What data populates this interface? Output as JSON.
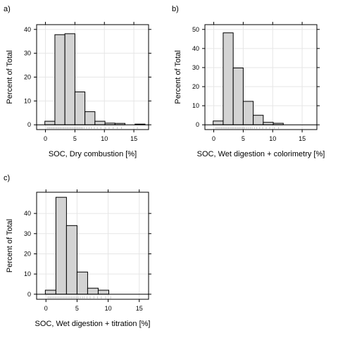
{
  "colors": {
    "bar_fill": "#d3d3d3",
    "bar_stroke": "#000000",
    "grid": "#e6e6e6",
    "rug": "#c8c8c8",
    "frame": "#000000"
  },
  "chart_data": [
    {
      "type": "bar",
      "panel_label": "a)",
      "title": "",
      "xlabel": "SOC, Dry combustion [%]",
      "ylabel": "Percent of Total",
      "grid": true,
      "xlim": [
        -1.5,
        17.5
      ],
      "ylim": [
        -2,
        42
      ],
      "xticks": [
        0,
        5,
        10,
        15
      ],
      "yticks": [
        0,
        10,
        20,
        30,
        40
      ],
      "bin_edges": [
        -0.1,
        1.6,
        3.3,
        5.0,
        6.7,
        8.4,
        10.1,
        11.8,
        13.5,
        15.2,
        16.9
      ],
      "values": [
        1.5,
        37.8,
        38.2,
        13.8,
        5.5,
        1.5,
        0.7,
        0.6,
        0.0,
        0.3
      ],
      "rug": [
        0.3,
        0.5,
        0.7,
        0.9,
        1.1,
        1.3,
        1.5,
        1.7,
        1.9,
        2.1,
        2.3,
        2.5,
        2.7,
        2.9,
        3.1,
        3.3,
        3.5,
        3.7,
        3.9,
        4.1,
        4.3,
        4.5,
        4.7,
        4.9,
        5.1,
        5.3,
        5.5,
        5.7,
        5.9,
        6.1,
        6.3,
        6.6,
        7.0,
        7.4,
        7.8,
        8.3,
        8.8,
        9.4,
        10.2,
        10.8,
        11.5,
        12.2,
        12.9,
        15.6
      ]
    },
    {
      "type": "bar",
      "panel_label": "b)",
      "title": "",
      "xlabel": "SOC,  Wet digestion + colorimetry [%]",
      "ylabel": "Percent of Total",
      "grid": true,
      "xlim": [
        -1.5,
        17.5
      ],
      "ylim": [
        -2.5,
        52.5
      ],
      "xticks": [
        0,
        5,
        10,
        15
      ],
      "yticks": [
        0,
        10,
        20,
        30,
        40,
        50
      ],
      "bin_edges": [
        -0.1,
        1.6,
        3.3,
        5.0,
        6.7,
        8.4,
        10.1,
        11.8
      ],
      "values": [
        2.0,
        48.2,
        29.8,
        12.3,
        5.0,
        1.3,
        0.8
      ],
      "rug": [
        0.3,
        0.5,
        0.7,
        0.9,
        1.1,
        1.3,
        1.5,
        1.7,
        1.9,
        2.1,
        2.3,
        2.5,
        2.7,
        2.9,
        3.1,
        3.3,
        3.5,
        3.7,
        3.9,
        4.1,
        4.3,
        4.5,
        4.7,
        4.9,
        5.1,
        5.3,
        5.6,
        5.9,
        6.2,
        6.5,
        6.9,
        7.3,
        7.8,
        8.3,
        8.9,
        9.5,
        10.3,
        11.0
      ]
    },
    {
      "type": "bar",
      "panel_label": "c)",
      "title": "",
      "xlabel": "SOC, Wet digestion + titration [%]",
      "ylabel": "Percent of Total",
      "grid": true,
      "xlim": [
        -1.5,
        16.5
      ],
      "ylim": [
        -2.5,
        50.5
      ],
      "xticks": [
        0,
        5,
        10,
        15
      ],
      "yticks": [
        0,
        10,
        20,
        30,
        40
      ],
      "bin_edges": [
        -0.1,
        1.6,
        3.3,
        5.0,
        6.7,
        8.4,
        10.1
      ],
      "values": [
        2.0,
        48.0,
        34.0,
        11.0,
        3.0,
        2.0
      ],
      "rug": [
        0.3,
        0.5,
        0.7,
        0.9,
        1.1,
        1.3,
        1.5,
        1.7,
        1.9,
        2.1,
        2.3,
        2.5,
        2.7,
        2.9,
        3.1,
        3.3,
        3.5,
        3.7,
        3.9,
        4.1,
        4.3,
        4.5,
        4.7,
        4.9,
        5.1,
        5.3,
        5.6,
        5.9,
        6.2,
        6.6,
        7.1,
        7.7,
        8.3,
        8.9,
        9.6,
        10.4
      ]
    }
  ]
}
